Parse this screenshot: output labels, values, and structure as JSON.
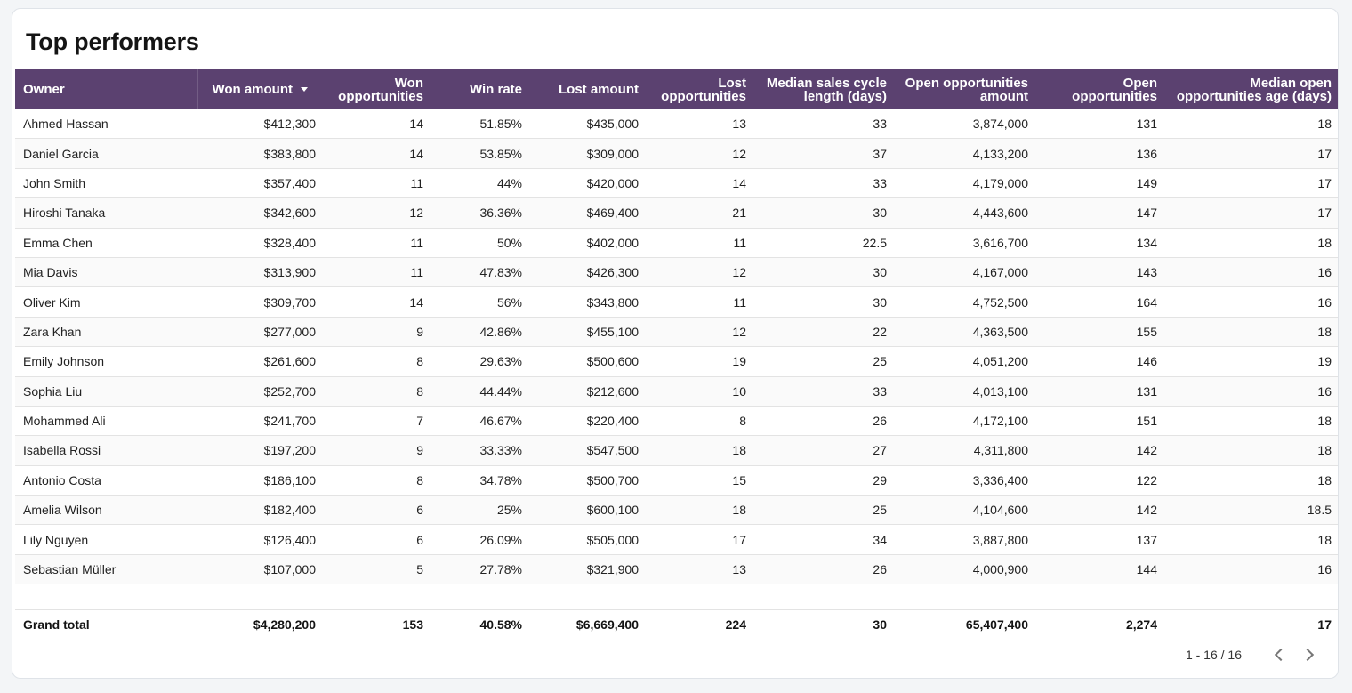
{
  "title": "Top performers",
  "columns": [
    {
      "label": "Owner"
    },
    {
      "label": "Won amount",
      "sorted": "desc"
    },
    {
      "label": "Won\nopportunities"
    },
    {
      "label": "Win rate"
    },
    {
      "label": "Lost amount"
    },
    {
      "label": "Lost\nopportunities"
    },
    {
      "label": "Median sales cycle\nlength (days)"
    },
    {
      "label": "Open opportunities\namount"
    },
    {
      "label": "Open\nopportunities"
    },
    {
      "label": "Median open\nopportunities age (days)"
    }
  ],
  "rows": [
    [
      "Ahmed Hassan",
      "$412,300",
      "14",
      "51.85%",
      "$435,000",
      "13",
      "33",
      "3,874,000",
      "131",
      "18"
    ],
    [
      "Daniel Garcia",
      "$383,800",
      "14",
      "53.85%",
      "$309,000",
      "12",
      "37",
      "4,133,200",
      "136",
      "17"
    ],
    [
      "John Smith",
      "$357,400",
      "11",
      "44%",
      "$420,000",
      "14",
      "33",
      "4,179,000",
      "149",
      "17"
    ],
    [
      "Hiroshi Tanaka",
      "$342,600",
      "12",
      "36.36%",
      "$469,400",
      "21",
      "30",
      "4,443,600",
      "147",
      "17"
    ],
    [
      "Emma Chen",
      "$328,400",
      "11",
      "50%",
      "$402,000",
      "11",
      "22.5",
      "3,616,700",
      "134",
      "18"
    ],
    [
      "Mia Davis",
      "$313,900",
      "11",
      "47.83%",
      "$426,300",
      "12",
      "30",
      "4,167,000",
      "143",
      "16"
    ],
    [
      "Oliver Kim",
      "$309,700",
      "14",
      "56%",
      "$343,800",
      "11",
      "30",
      "4,752,500",
      "164",
      "16"
    ],
    [
      "Zara Khan",
      "$277,000",
      "9",
      "42.86%",
      "$455,100",
      "12",
      "22",
      "4,363,500",
      "155",
      "18"
    ],
    [
      "Emily Johnson",
      "$261,600",
      "8",
      "29.63%",
      "$500,600",
      "19",
      "25",
      "4,051,200",
      "146",
      "19"
    ],
    [
      "Sophia Liu",
      "$252,700",
      "8",
      "44.44%",
      "$212,600",
      "10",
      "33",
      "4,013,100",
      "131",
      "16"
    ],
    [
      "Mohammed Ali",
      "$241,700",
      "7",
      "46.67%",
      "$220,400",
      "8",
      "26",
      "4,172,100",
      "151",
      "18"
    ],
    [
      "Isabella Rossi",
      "$197,200",
      "9",
      "33.33%",
      "$547,500",
      "18",
      "27",
      "4,311,800",
      "142",
      "18"
    ],
    [
      "Antonio Costa",
      "$186,100",
      "8",
      "34.78%",
      "$500,700",
      "15",
      "29",
      "3,336,400",
      "122",
      "18"
    ],
    [
      "Amelia Wilson",
      "$182,400",
      "6",
      "25%",
      "$600,100",
      "18",
      "25",
      "4,104,600",
      "142",
      "18.5"
    ],
    [
      "Lily Nguyen",
      "$126,400",
      "6",
      "26.09%",
      "$505,000",
      "17",
      "34",
      "3,887,800",
      "137",
      "18"
    ],
    [
      "Sebastian Müller",
      "$107,000",
      "5",
      "27.78%",
      "$321,900",
      "13",
      "26",
      "4,000,900",
      "144",
      "16"
    ]
  ],
  "total": [
    "Grand total",
    "$4,280,200",
    "153",
    "40.58%",
    "$6,669,400",
    "224",
    "30",
    "65,407,400",
    "2,274",
    "17"
  ],
  "pagination": {
    "range": "1 - 16 / 16",
    "prev_icon": "chevron-left-icon",
    "next_icon": "chevron-right-icon"
  },
  "colors": {
    "header_bg": "#5b4170",
    "header_text": "#ffffff",
    "page_bg": "#f3f5f7"
  }
}
